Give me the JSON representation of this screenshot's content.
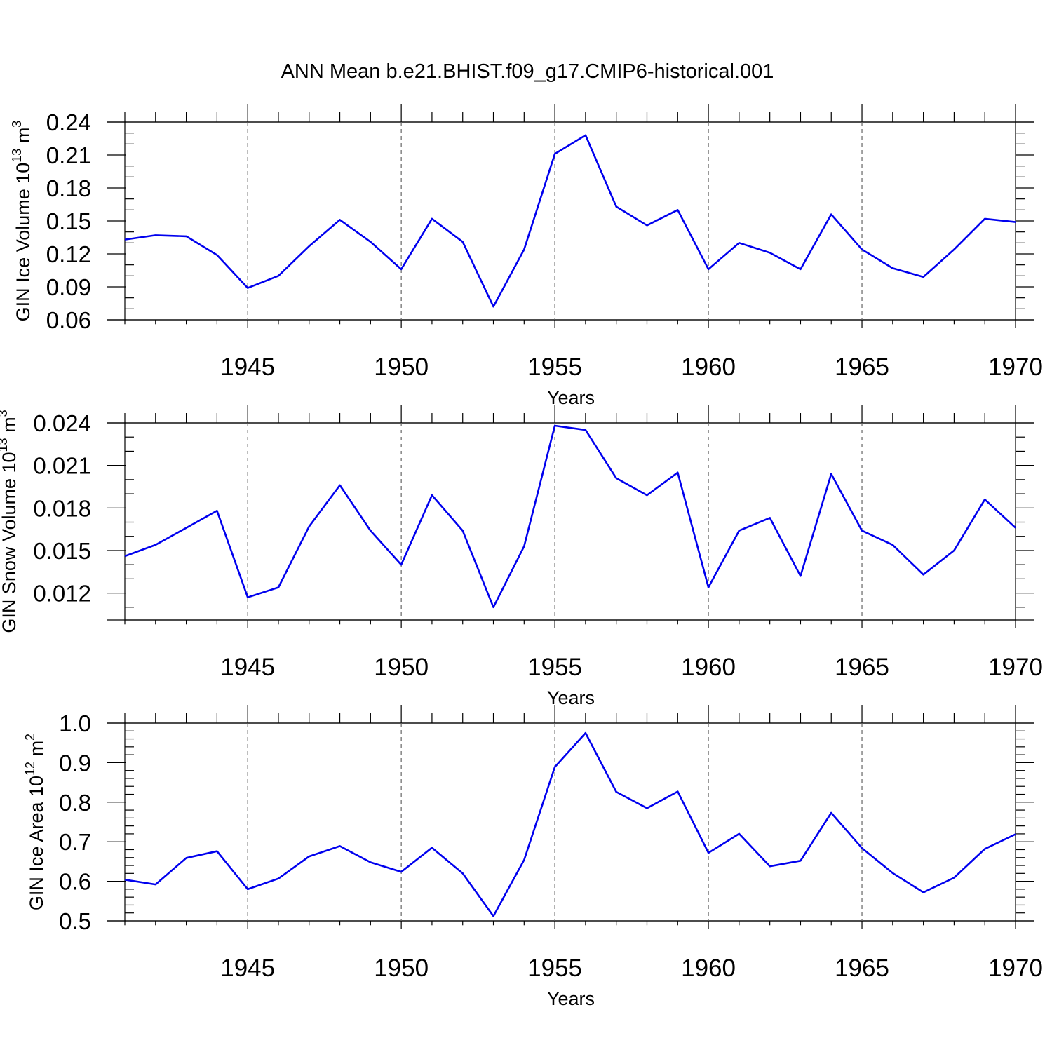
{
  "title": "ANN Mean b.e21.BHIST.f09_g17.CMIP6-historical.001",
  "colors": {
    "line": "#0000ee",
    "grid": "#666666",
    "axis": "#000000"
  },
  "chart_data": [
    {
      "type": "line",
      "ylabel": {
        "main": "GIN Ice Volume 10",
        "exponent": "13",
        "unit": " m",
        "unit_exponent": "3"
      },
      "xlabel": "Years",
      "xlim": [
        1941,
        1970
      ],
      "ylim": [
        0.06,
        0.24
      ],
      "yticks": [
        0.06,
        0.09,
        0.12,
        0.15,
        0.18,
        0.21,
        0.24
      ],
      "ytick_labels": [
        "0.06",
        "0.09",
        "0.12",
        "0.15",
        "0.18",
        "0.21",
        "0.24"
      ],
      "yminor_step": 0.01,
      "xticks": [
        1945,
        1950,
        1955,
        1960,
        1965,
        1970
      ],
      "xtick_labels": [
        "1945",
        "1950",
        "1955",
        "1960",
        "1965",
        "1970"
      ],
      "grid": "x-dashed",
      "series": [
        {
          "name": "GIN Ice Volume",
          "x": [
            1941,
            1942,
            1943,
            1944,
            1945,
            1946,
            1947,
            1948,
            1949,
            1950,
            1951,
            1952,
            1953,
            1954,
            1955,
            1956,
            1957,
            1958,
            1959,
            1960,
            1961,
            1962,
            1963,
            1964,
            1965,
            1966,
            1967,
            1968,
            1969,
            1970
          ],
          "values": [
            0.133,
            0.137,
            0.136,
            0.119,
            0.089,
            0.1,
            0.127,
            0.151,
            0.131,
            0.106,
            0.152,
            0.131,
            0.072,
            0.124,
            0.211,
            0.228,
            0.163,
            0.146,
            0.16,
            0.106,
            0.13,
            0.121,
            0.106,
            0.156,
            0.124,
            0.107,
            0.099,
            0.124,
            0.152,
            0.149
          ]
        }
      ]
    },
    {
      "type": "line",
      "ylabel": {
        "main": "GIN Snow Volume 10",
        "exponent": "13",
        "unit": " m",
        "unit_exponent": "3"
      },
      "xlabel": "Years",
      "xlim": [
        1941,
        1970
      ],
      "ylim": [
        0.0101,
        0.024
      ],
      "yticks": [
        0.012,
        0.015,
        0.018,
        0.021,
        0.024
      ],
      "ytick_labels": [
        "0.012",
        "0.015",
        "0.018",
        "0.021",
        "0.024"
      ],
      "yminor_step": 0.001,
      "xticks": [
        1945,
        1950,
        1955,
        1960,
        1965,
        1970
      ],
      "xtick_labels": [
        "1945",
        "1950",
        "1955",
        "1960",
        "1965",
        "1970"
      ],
      "grid": "x-dashed",
      "series": [
        {
          "name": "GIN Snow Volume",
          "x": [
            1941,
            1942,
            1943,
            1944,
            1945,
            1946,
            1947,
            1948,
            1949,
            1950,
            1951,
            1952,
            1953,
            1954,
            1955,
            1956,
            1957,
            1958,
            1959,
            1960,
            1961,
            1962,
            1963,
            1964,
            1965,
            1966,
            1967,
            1968,
            1969,
            1970
          ],
          "values": [
            0.0146,
            0.0154,
            0.0166,
            0.0178,
            0.0117,
            0.0124,
            0.0167,
            0.0196,
            0.0164,
            0.014,
            0.0189,
            0.0164,
            0.011,
            0.0153,
            0.0238,
            0.0235,
            0.0201,
            0.0189,
            0.0205,
            0.0124,
            0.0164,
            0.0173,
            0.0132,
            0.0204,
            0.0164,
            0.0154,
            0.0133,
            0.015,
            0.0186,
            0.0166
          ]
        }
      ]
    },
    {
      "type": "line",
      "ylabel": {
        "main": "GIN Ice Area 10",
        "exponent": "12",
        "unit": " m",
        "unit_exponent": "2"
      },
      "xlabel": "Years",
      "xlim": [
        1941,
        1970
      ],
      "ylim": [
        0.5,
        1.0
      ],
      "yticks": [
        0.5,
        0.6,
        0.7,
        0.8,
        0.9,
        1.0
      ],
      "ytick_labels": [
        "0.5",
        "0.6",
        "0.7",
        "0.8",
        "0.9",
        "1.0"
      ],
      "yminor_step": 0.02,
      "xticks": [
        1945,
        1950,
        1955,
        1960,
        1965,
        1970
      ],
      "xtick_labels": [
        "1945",
        "1950",
        "1955",
        "1960",
        "1965",
        "1970"
      ],
      "grid": "x-dashed",
      "series": [
        {
          "name": "GIN Ice Area",
          "x": [
            1941,
            1942,
            1943,
            1944,
            1945,
            1946,
            1947,
            1948,
            1949,
            1950,
            1951,
            1952,
            1953,
            1954,
            1955,
            1956,
            1957,
            1958,
            1959,
            1960,
            1961,
            1962,
            1963,
            1964,
            1965,
            1966,
            1967,
            1968,
            1969,
            1970
          ],
          "values": [
            0.604,
            0.592,
            0.659,
            0.676,
            0.58,
            0.607,
            0.663,
            0.689,
            0.648,
            0.624,
            0.685,
            0.62,
            0.512,
            0.654,
            0.889,
            0.975,
            0.826,
            0.785,
            0.827,
            0.672,
            0.72,
            0.638,
            0.652,
            0.773,
            0.684,
            0.621,
            0.572,
            0.609,
            0.682,
            0.719
          ]
        }
      ]
    }
  ]
}
